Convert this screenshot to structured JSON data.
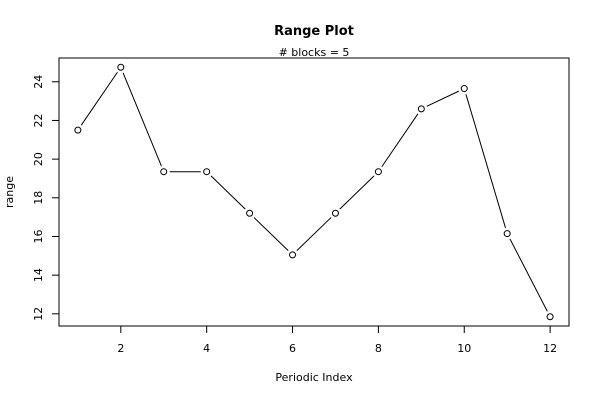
{
  "chart_data": {
    "type": "line",
    "title": "Range Plot",
    "subtitle": "# blocks =  5",
    "xlabel": "Periodic Index",
    "ylabel": "range",
    "x": [
      1,
      2,
      3,
      4,
      5,
      6,
      7,
      8,
      9,
      10,
      11,
      12
    ],
    "series": [
      {
        "values": [
          21.5,
          24.75,
          19.35,
          19.35,
          17.2,
          15.05,
          17.2,
          19.35,
          22.6,
          23.65,
          16.15,
          11.85
        ]
      }
    ],
    "xlim": [
      0.56,
      12.44
    ],
    "ylim": [
      11.37,
      25.23
    ],
    "xticks": [
      2,
      4,
      6,
      8,
      10,
      12
    ],
    "yticks": [
      12,
      14,
      16,
      18,
      20,
      22,
      24
    ],
    "grid": false,
    "marker": "open-circle",
    "line_color": "#000000"
  }
}
